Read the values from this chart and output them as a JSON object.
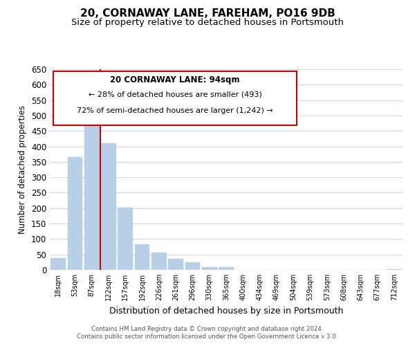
{
  "title": "20, CORNAWAY LANE, FAREHAM, PO16 9DB",
  "subtitle": "Size of property relative to detached houses in Portsmouth",
  "xlabel": "Distribution of detached houses by size in Portsmouth",
  "ylabel": "Number of detached properties",
  "bar_labels": [
    "18sqm",
    "53sqm",
    "87sqm",
    "122sqm",
    "157sqm",
    "192sqm",
    "226sqm",
    "261sqm",
    "296sqm",
    "330sqm",
    "365sqm",
    "400sqm",
    "434sqm",
    "469sqm",
    "504sqm",
    "539sqm",
    "573sqm",
    "608sqm",
    "643sqm",
    "677sqm",
    "712sqm"
  ],
  "bar_values": [
    38,
    365,
    518,
    410,
    202,
    82,
    57,
    35,
    25,
    9,
    10,
    0,
    0,
    0,
    0,
    0,
    1,
    0,
    0,
    0,
    2
  ],
  "bar_color": "#b8cfe8",
  "bar_edge_color": "#b8cfe8",
  "vline_color": "#cc0000",
  "ylim": [
    0,
    650
  ],
  "yticks": [
    0,
    50,
    100,
    150,
    200,
    250,
    300,
    350,
    400,
    450,
    500,
    550,
    600,
    650
  ],
  "annotation_title": "20 CORNAWAY LANE: 94sqm",
  "annotation_line1": "← 28% of detached houses are smaller (493)",
  "annotation_line2": "72% of semi-detached houses are larger (1,242) →",
  "annotation_box_color": "#ffffff",
  "annotation_box_edge": "#cc0000",
  "footer1": "Contains HM Land Registry data © Crown copyright and database right 2024.",
  "footer2": "Contains public sector information licensed under the Open Government Licence v 3.0.",
  "background_color": "#ffffff",
  "grid_color": "#d0d8e8",
  "title_fontsize": 11,
  "subtitle_fontsize": 9.5
}
